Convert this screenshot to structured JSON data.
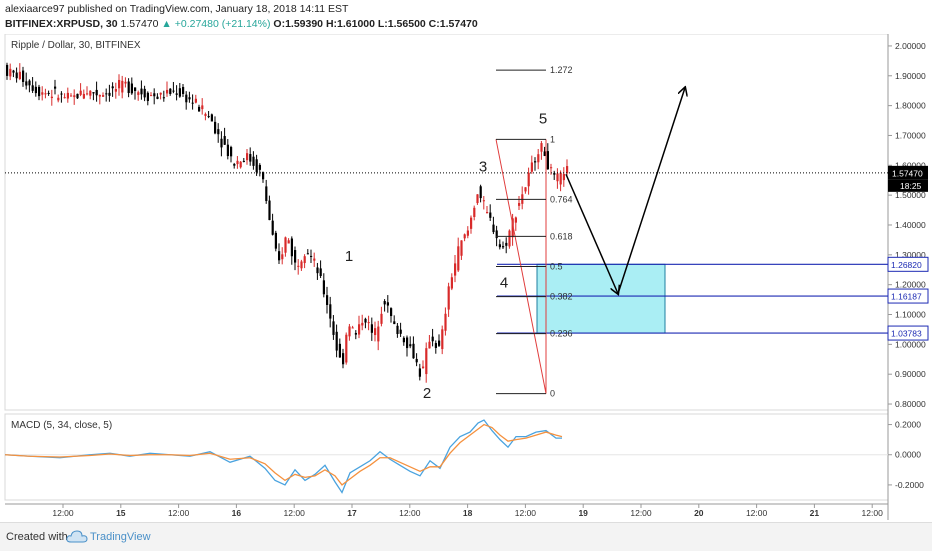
{
  "header": {
    "line1": "alexiaarce97 published on TradingView.com, January 18, 2018 14:11 EST",
    "symbol": "BITFINEX:XRPUSD, 30",
    "last": "1.57470",
    "change": "▲ +0.27480 (+21.14%)",
    "ohlc": "O:1.59390 H:1.61000 L:1.56500 C:1.57470"
  },
  "footer": {
    "created_with": "Created with",
    "brand": "TradingView"
  },
  "chart_data": [
    {
      "type": "candlestick",
      "title": "Ripple / Dollar, 30, BITFINEX",
      "ylim": [
        0.78,
        2.04
      ],
      "yticks": [
        "2.00000",
        "1.90000",
        "1.80000",
        "1.70000",
        "1.60000",
        "1.50000",
        "1.40000",
        "1.30000",
        "1.20000",
        "1.10000",
        "1.00000",
        "0.90000",
        "0.80000"
      ],
      "xticks": [
        "12:00",
        "15",
        "12:00",
        "16",
        "12:00",
        "17",
        "12:00",
        "18",
        "12:00",
        "19",
        "12:00",
        "20",
        "12:00",
        "21",
        "12:00"
      ],
      "price_line": {
        "label": "1.57470",
        "value": 1.5747,
        "timer": "18:25"
      },
      "path": [
        [
          0,
          1.97
        ],
        [
          10,
          1.91
        ],
        [
          22,
          1.9
        ],
        [
          40,
          1.85
        ],
        [
          55,
          1.84
        ],
        [
          72,
          1.82
        ],
        [
          87,
          1.85
        ],
        [
          100,
          1.84
        ],
        [
          114,
          1.85
        ],
        [
          128,
          1.87
        ],
        [
          146,
          1.84
        ],
        [
          160,
          1.83
        ],
        [
          178,
          1.85
        ],
        [
          196,
          1.81
        ],
        [
          212,
          1.76
        ],
        [
          226,
          1.67
        ],
        [
          236,
          1.61
        ],
        [
          250,
          1.63
        ],
        [
          264,
          1.57
        ],
        [
          272,
          1.41
        ],
        [
          280,
          1.26
        ],
        [
          289,
          1.37
        ],
        [
          298,
          1.26
        ],
        [
          308,
          1.33
        ],
        [
          320,
          1.24
        ],
        [
          330,
          1.13
        ],
        [
          338,
          1.0
        ],
        [
          344,
          0.92
        ],
        [
          350,
          1.08
        ],
        [
          358,
          1.03
        ],
        [
          366,
          1.1
        ],
        [
          376,
          1.02
        ],
        [
          386,
          1.16
        ],
        [
          396,
          1.06
        ],
        [
          404,
          1.03
        ],
        [
          414,
          0.98
        ],
        [
          424,
          0.89
        ],
        [
          432,
          1.03
        ],
        [
          442,
          0.98
        ],
        [
          452,
          1.21
        ],
        [
          462,
          1.33
        ],
        [
          470,
          1.38
        ],
        [
          480,
          1.52
        ],
        [
          488,
          1.44
        ],
        [
          496,
          1.39
        ],
        [
          504,
          1.31
        ],
        [
          512,
          1.38
        ],
        [
          520,
          1.47
        ],
        [
          530,
          1.55
        ],
        [
          540,
          1.66
        ],
        [
          546,
          1.65
        ],
        [
          552,
          1.58
        ],
        [
          558,
          1.54
        ],
        [
          566,
          1.58
        ]
      ],
      "wave_labels": [
        {
          "label": "1",
          "x": 349,
          "y": 1.28
        },
        {
          "label": "2",
          "x": 427,
          "y": 0.82
        },
        {
          "label": "3",
          "x": 483,
          "y": 1.58
        },
        {
          "label": "4",
          "x": 504,
          "y": 1.19
        },
        {
          "label": "5",
          "x": 543,
          "y": 1.74
        }
      ],
      "fibonacci": {
        "x_start": 496,
        "x_end": 546,
        "levels": [
          {
            "label": "1.272",
            "value": 1.919
          },
          {
            "label": "1",
            "value": 1.687
          },
          {
            "label": "0.764",
            "value": 1.486
          },
          {
            "label": "0.618",
            "value": 1.362
          },
          {
            "label": "0.5",
            "value": 1.261
          },
          {
            "label": "0.382",
            "value": 1.16
          },
          {
            "label": "0.236",
            "value": 1.036
          },
          {
            "label": "0",
            "value": 0.835
          }
        ]
      },
      "fib_triangle": [
        [
          496,
          1.687
        ],
        [
          546,
          0.835
        ],
        [
          546,
          1.687
        ]
      ],
      "target_zone": {
        "x_start": 537,
        "x_end": 665,
        "top": 1.2682,
        "bottom": 1.03783
      },
      "horizontal_levels": [
        {
          "label": "1.26820",
          "value": 1.2682
        },
        {
          "label": "1.16187",
          "value": 1.16187
        },
        {
          "label": "1.03783",
          "value": 1.03783
        }
      ],
      "projection": [
        [
          566,
          1.57
        ],
        [
          618,
          1.17
        ],
        [
          685,
          1.86
        ]
      ]
    },
    {
      "type": "line",
      "title": "MACD (5, 34, close, 5)",
      "ylim": [
        -0.3,
        0.27
      ],
      "yticks": [
        "0.2000",
        "0.0000",
        "-0.2000"
      ],
      "series": [
        {
          "color": "#4aa3df",
          "points": [
            [
              5,
              0.0
            ],
            [
              30,
              -0.01
            ],
            [
              60,
              -0.02
            ],
            [
              90,
              0.0
            ],
            [
              110,
              0.01
            ],
            [
              130,
              -0.01
            ],
            [
              150,
              0.01
            ],
            [
              170,
              0.0
            ],
            [
              190,
              -0.01
            ],
            [
              210,
              0.02
            ],
            [
              230,
              -0.05
            ],
            [
              250,
              -0.01
            ],
            [
              265,
              -0.09
            ],
            [
              275,
              -0.17
            ],
            [
              285,
              -0.2
            ],
            [
              295,
              -0.1
            ],
            [
              305,
              -0.17
            ],
            [
              315,
              -0.13
            ],
            [
              325,
              -0.07
            ],
            [
              335,
              -0.18
            ],
            [
              342,
              -0.25
            ],
            [
              350,
              -0.12
            ],
            [
              360,
              -0.08
            ],
            [
              370,
              -0.04
            ],
            [
              380,
              0.02
            ],
            [
              390,
              -0.03
            ],
            [
              400,
              -0.07
            ],
            [
              410,
              -0.11
            ],
            [
              420,
              -0.14
            ],
            [
              430,
              -0.04
            ],
            [
              440,
              -0.09
            ],
            [
              450,
              0.05
            ],
            [
              460,
              0.12
            ],
            [
              470,
              0.15
            ],
            [
              478,
              0.21
            ],
            [
              484,
              0.23
            ],
            [
              492,
              0.16
            ],
            [
              500,
              0.1
            ],
            [
              508,
              0.05
            ],
            [
              516,
              0.12
            ],
            [
              526,
              0.12
            ],
            [
              536,
              0.15
            ],
            [
              546,
              0.16
            ],
            [
              556,
              0.11
            ],
            [
              562,
              0.11
            ]
          ]
        },
        {
          "color": "#f5913e",
          "points": [
            [
              5,
              0.0
            ],
            [
              30,
              -0.01
            ],
            [
              60,
              -0.015
            ],
            [
              90,
              -0.005
            ],
            [
              110,
              0.005
            ],
            [
              130,
              -0.005
            ],
            [
              150,
              0.0
            ],
            [
              170,
              0.0
            ],
            [
              190,
              -0.005
            ],
            [
              210,
              0.01
            ],
            [
              230,
              -0.03
            ],
            [
              250,
              -0.02
            ],
            [
              265,
              -0.06
            ],
            [
              275,
              -0.12
            ],
            [
              285,
              -0.17
            ],
            [
              295,
              -0.13
            ],
            [
              305,
              -0.15
            ],
            [
              315,
              -0.14
            ],
            [
              325,
              -0.1
            ],
            [
              335,
              -0.14
            ],
            [
              342,
              -0.2
            ],
            [
              350,
              -0.16
            ],
            [
              360,
              -0.11
            ],
            [
              370,
              -0.07
            ],
            [
              380,
              -0.02
            ],
            [
              390,
              -0.02
            ],
            [
              400,
              -0.05
            ],
            [
              410,
              -0.08
            ],
            [
              420,
              -0.11
            ],
            [
              430,
              -0.08
            ],
            [
              440,
              -0.08
            ],
            [
              450,
              0.01
            ],
            [
              460,
              0.08
            ],
            [
              470,
              0.13
            ],
            [
              478,
              0.17
            ],
            [
              484,
              0.2
            ],
            [
              492,
              0.18
            ],
            [
              500,
              0.13
            ],
            [
              508,
              0.09
            ],
            [
              516,
              0.1
            ],
            [
              526,
              0.11
            ],
            [
              536,
              0.13
            ],
            [
              546,
              0.15
            ],
            [
              556,
              0.13
            ],
            [
              562,
              0.12
            ]
          ]
        }
      ]
    }
  ],
  "colors": {
    "up": "#26a69a",
    "down": "#000000",
    "candle_red": "#d82a2a",
    "fib": "#222222",
    "zone_fill": "#8ee8f0",
    "zone_border": "#1f7fa0",
    "level_line": "#1c2ab3",
    "triangle": "#e03c3c"
  }
}
